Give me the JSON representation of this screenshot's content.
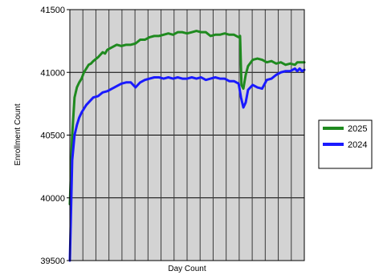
{
  "chart_data": {
    "type": "line",
    "xlabel": "Day Count",
    "ylabel": "Enrollment Count",
    "ylim": [
      39500,
      41500
    ],
    "yticks": [
      39500,
      40000,
      40500,
      41000,
      41500
    ],
    "xlim": [
      0,
      100
    ],
    "vertical_gridline_count": 17,
    "grid": true,
    "background_color": "#d3d3d3",
    "legend_position": "right",
    "series": [
      {
        "name": "2025",
        "color": "#1f8a1f",
        "x": [
          0,
          1,
          2,
          3,
          4,
          5,
          6,
          7,
          8,
          9,
          10,
          12,
          14,
          15,
          16,
          18,
          20,
          22,
          24,
          26,
          28,
          30,
          32,
          34,
          36,
          38,
          40,
          42,
          44,
          46,
          48,
          50,
          52,
          54,
          56,
          58,
          60,
          62,
          64,
          66,
          68,
          70,
          72,
          72.6,
          73.2,
          74,
          75,
          76,
          78,
          80,
          82,
          84,
          86,
          88,
          90,
          92,
          94,
          96,
          97,
          98,
          100
        ],
        "values": [
          39950,
          40500,
          40800,
          40880,
          40920,
          40950,
          41000,
          41030,
          41060,
          41070,
          41090,
          41120,
          41160,
          41150,
          41180,
          41200,
          41220,
          41210,
          41220,
          41220,
          41230,
          41260,
          41260,
          41280,
          41290,
          41290,
          41300,
          41310,
          41300,
          41320,
          41320,
          41310,
          41320,
          41330,
          41320,
          41320,
          41290,
          41300,
          41300,
          41310,
          41300,
          41300,
          41280,
          41290,
          40900,
          40870,
          40980,
          41050,
          41100,
          41110,
          41100,
          41080,
          41090,
          41070,
          41080,
          41060,
          41070,
          41060,
          41080,
          41080,
          41080
        ]
      },
      {
        "name": "2024",
        "color": "#1a1aff",
        "x": [
          0,
          1,
          2,
          3,
          4,
          5,
          6,
          7,
          8,
          10,
          12,
          14,
          16,
          18,
          20,
          22,
          24,
          26,
          28,
          30,
          32,
          34,
          36,
          38,
          40,
          42,
          44,
          46,
          48,
          50,
          52,
          54,
          56,
          58,
          60,
          62,
          64,
          66,
          68,
          70,
          72,
          73,
          74,
          75,
          76,
          78,
          80,
          82,
          84,
          86,
          88,
          90,
          92,
          94,
          96,
          97,
          98,
          99,
          100
        ],
        "values": [
          39500,
          40300,
          40500,
          40580,
          40640,
          40680,
          40710,
          40740,
          40760,
          40800,
          40810,
          40840,
          40850,
          40870,
          40890,
          40910,
          40920,
          40920,
          40880,
          40920,
          40940,
          40950,
          40960,
          40960,
          40950,
          40960,
          40950,
          40960,
          40950,
          40950,
          40960,
          40950,
          40960,
          40940,
          40950,
          40960,
          40950,
          40950,
          40930,
          40930,
          40910,
          40800,
          40720,
          40760,
          40860,
          40900,
          40880,
          40870,
          40940,
          40950,
          40980,
          41000,
          41010,
          41010,
          41030,
          41010,
          41030,
          41010,
          41020
        ]
      }
    ]
  }
}
